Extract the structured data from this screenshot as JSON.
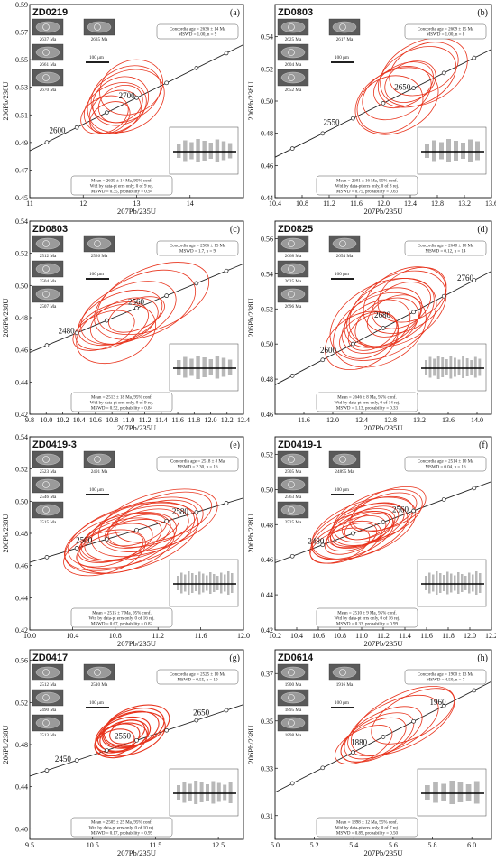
{
  "chart_data": [
    {
      "panel": "(a)",
      "sample": "ZD0219",
      "type": "scatter",
      "xlabel": "207Pb/235U",
      "ylabel": "206Pb/238U",
      "xlim": [
        11,
        15
      ],
      "ylim": [
        0.45,
        0.59
      ],
      "xticks": [
        "11",
        "12",
        "13",
        "14"
      ],
      "yticks": [
        "0.45",
        "0.47",
        "0.49",
        "0.51",
        "0.53",
        "0.55",
        "0.57",
        "0.59"
      ],
      "concordia_labels": [
        {
          "age": "2600",
          "x": 11.6,
          "y": 0.4955
        },
        {
          "age": "2700",
          "x": 12.9,
          "y": 0.5205
        }
      ],
      "concordia_age_text": [
        "Concordia age = 2636 ± 14 Ma",
        "MSWD = 1.00, n = 9"
      ],
      "mean_text": [
        "Mean = 2639 ± 14 Ma, 95% conf.",
        "Wtd by data-pt errs only, 0 of 9 rej.",
        "MSWD = 0.35, probability = 0.94"
      ],
      "grain_labels": [
        "2637 Ma",
        "2635 Ma",
        "2661 Ma",
        "2670 Ma"
      ],
      "scale_bar": "100 μm",
      "ellipses": [
        {
          "cx": 12.6,
          "cy": 0.515,
          "rx": 0.85,
          "ry": 0.04
        },
        {
          "cx": 12.4,
          "cy": 0.51,
          "rx": 0.65,
          "ry": 0.03
        },
        {
          "cx": 12.7,
          "cy": 0.52,
          "rx": 0.75,
          "ry": 0.04
        },
        {
          "cx": 12.8,
          "cy": 0.525,
          "rx": 0.95,
          "ry": 0.045
        },
        {
          "cx": 12.5,
          "cy": 0.508,
          "rx": 0.55,
          "ry": 0.025
        },
        {
          "cx": 12.9,
          "cy": 0.53,
          "rx": 0.85,
          "ry": 0.045
        },
        {
          "cx": 12.6,
          "cy": 0.512,
          "rx": 0.7,
          "ry": 0.035
        },
        {
          "cx": 12.7,
          "cy": 0.518,
          "rx": 0.6,
          "ry": 0.03
        },
        {
          "cx": 12.8,
          "cy": 0.52,
          "rx": 1.05,
          "ry": 0.05
        }
      ]
    },
    {
      "panel": "(b)",
      "sample": "ZD0803",
      "type": "scatter",
      "xlabel": "207Pb/235U",
      "ylabel": "206Pb/238U",
      "xlim": [
        10.4,
        13.6
      ],
      "ylim": [
        0.44,
        0.56
      ],
      "xticks": [
        "10.4",
        "10.8",
        "11.2",
        "11.6",
        "12.0",
        "12.4",
        "12.8",
        "13.2",
        "13.6"
      ],
      "yticks": [
        "0.44",
        "0.46",
        "0.48",
        "0.50",
        "0.52",
        "0.54"
      ],
      "concordia_labels": [
        {
          "age": "2550",
          "x": 11.3,
          "y": 0.484
        },
        {
          "age": "2650",
          "x": 12.35,
          "y": 0.506
        }
      ],
      "concordia_age_text": [
        "Concordia age = 2609 ± 15 Ma",
        "MSWD = 1.00, n = 8"
      ],
      "mean_text": [
        "Mean = 2601 ± 16 Ma, 95% conf.",
        "Wtd by data-pt errs only, 0 of 8 rej.",
        "MSWD = 0.75, probability = 0.63"
      ],
      "grain_labels": [
        "2625 Ma",
        "2617 Ma",
        "2604 Ma",
        "2652 Ma"
      ],
      "scale_bar": "100 μm",
      "ellipses": [
        {
          "cx": 12.2,
          "cy": 0.505,
          "rx": 0.75,
          "ry": 0.035
        },
        {
          "cx": 12.3,
          "cy": 0.51,
          "rx": 0.65,
          "ry": 0.03
        },
        {
          "cx": 12.5,
          "cy": 0.515,
          "rx": 0.85,
          "ry": 0.04
        },
        {
          "cx": 12.2,
          "cy": 0.5,
          "rx": 0.9,
          "ry": 0.045
        },
        {
          "cx": 12.4,
          "cy": 0.512,
          "rx": 0.55,
          "ry": 0.028
        },
        {
          "cx": 12.6,
          "cy": 0.52,
          "rx": 0.75,
          "ry": 0.035
        },
        {
          "cx": 12.1,
          "cy": 0.498,
          "rx": 0.7,
          "ry": 0.04
        },
        {
          "cx": 12.6,
          "cy": 0.518,
          "rx": 0.95,
          "ry": 0.045
        }
      ]
    },
    {
      "panel": "(c)",
      "sample": "ZD0803",
      "type": "scatter",
      "xlabel": "207Pb/235U",
      "ylabel": "206Pb/238U",
      "xlim": [
        9.8,
        12.4
      ],
      "ylim": [
        0.42,
        0.54
      ],
      "xticks": [
        "9.8",
        "10.0",
        "10.2",
        "10.4",
        "10.6",
        "10.8",
        "11.0",
        "11.2",
        "11.4",
        "11.6",
        "11.8",
        "12.0",
        "12.2",
        "12.4"
      ],
      "yticks": [
        "0.42",
        "0.44",
        "0.46",
        "0.48",
        "0.50",
        "0.52",
        "0.54"
      ],
      "concordia_labels": [
        {
          "age": "2480",
          "x": 10.3,
          "y": 0.469
        },
        {
          "age": "2560",
          "x": 11.15,
          "y": 0.487
        }
      ],
      "concordia_age_text": [
        "Concordia age = 2506 ± 15 Ma",
        "MSWD = 1.7, n = 9"
      ],
      "mean_text": [
        "Mean = 2513 ± 18 Ma, 95% conf.",
        "Wtd by data-pt errs only, 0 of 9 rej.",
        "MSWD = 0.52, probability = 0.84"
      ],
      "grain_labels": [
        "2512 Ma",
        "2526 Ma",
        "2504 Ma",
        "2507 Ma"
      ],
      "scale_bar": "100 μm",
      "ellipses": [
        {
          "cx": 10.9,
          "cy": 0.48,
          "rx": 0.75,
          "ry": 0.035
        },
        {
          "cx": 10.8,
          "cy": 0.475,
          "rx": 0.65,
          "ry": 0.03
        },
        {
          "cx": 11.0,
          "cy": 0.483,
          "rx": 0.85,
          "ry": 0.04
        },
        {
          "cx": 10.7,
          "cy": 0.472,
          "rx": 0.55,
          "ry": 0.025
        },
        {
          "cx": 11.2,
          "cy": 0.488,
          "rx": 0.9,
          "ry": 0.045
        },
        {
          "cx": 10.95,
          "cy": 0.478,
          "rx": 0.6,
          "ry": 0.03
        },
        {
          "cx": 11.3,
          "cy": 0.492,
          "rx": 1.0,
          "ry": 0.045
        },
        {
          "cx": 10.85,
          "cy": 0.47,
          "rx": 0.7,
          "ry": 0.04
        },
        {
          "cx": 11.1,
          "cy": 0.482,
          "rx": 0.5,
          "ry": 0.022
        }
      ]
    },
    {
      "panel": "(d)",
      "sample": "ZD0825",
      "type": "scatter",
      "xlabel": "207Pb/235U",
      "ylabel": "206Pb/238U",
      "xlim": [
        11.2,
        14.2
      ],
      "ylim": [
        0.46,
        0.57
      ],
      "xticks": [
        "11.6",
        "12.0",
        "12.4",
        "12.8",
        "13.2",
        "13.6",
        "14.0"
      ],
      "yticks": [
        "0.46",
        "0.48",
        "0.50",
        "0.52",
        "0.54",
        "0.56"
      ],
      "concordia_labels": [
        {
          "age": "2600",
          "x": 12.0,
          "y": 0.494
        },
        {
          "age": "2680",
          "x": 12.75,
          "y": 0.514
        },
        {
          "age": "2760",
          "x": 13.9,
          "y": 0.535
        }
      ],
      "concordia_age_text": [
        "Concordia age = 2648 ± 10 Ma",
        "MSWD = 0.12, n = 14"
      ],
      "mean_text": [
        "Mean = 2646 ± 8 Ma, 95% conf.",
        "Wtd by data-pt errs only, 0 of 14 rej.",
        "MSWD = 1.13, probability = 0.33"
      ],
      "grain_labels": [
        "2668 Ma",
        "2654 Ma",
        "2625 Ma",
        "2696 Ma"
      ],
      "scale_bar": "100 μm",
      "ellipses": [
        {
          "cx": 12.7,
          "cy": 0.515,
          "rx": 0.8,
          "ry": 0.035
        },
        {
          "cx": 12.6,
          "cy": 0.51,
          "rx": 0.7,
          "ry": 0.032
        },
        {
          "cx": 12.8,
          "cy": 0.518,
          "rx": 0.9,
          "ry": 0.04
        },
        {
          "cx": 12.5,
          "cy": 0.505,
          "rx": 0.6,
          "ry": 0.028
        },
        {
          "cx": 12.9,
          "cy": 0.52,
          "rx": 1.0,
          "ry": 0.045
        },
        {
          "cx": 12.75,
          "cy": 0.512,
          "rx": 0.65,
          "ry": 0.03
        },
        {
          "cx": 13.0,
          "cy": 0.525,
          "rx": 0.85,
          "ry": 0.04
        },
        {
          "cx": 12.4,
          "cy": 0.502,
          "rx": 0.75,
          "ry": 0.035
        },
        {
          "cx": 12.85,
          "cy": 0.516,
          "rx": 0.55,
          "ry": 0.025
        },
        {
          "cx": 12.65,
          "cy": 0.508,
          "rx": 0.95,
          "ry": 0.045
        },
        {
          "cx": 13.1,
          "cy": 0.528,
          "rx": 0.7,
          "ry": 0.033
        },
        {
          "cx": 12.7,
          "cy": 0.514,
          "rx": 1.1,
          "ry": 0.048
        },
        {
          "cx": 12.55,
          "cy": 0.507,
          "rx": 0.5,
          "ry": 0.022
        },
        {
          "cx": 12.95,
          "cy": 0.522,
          "rx": 0.6,
          "ry": 0.028
        }
      ]
    },
    {
      "panel": "(e)",
      "sample": "ZD0419-3",
      "type": "scatter",
      "xlabel": "207Pb/235U",
      "ylabel": "206Pb/238U",
      "xlim": [
        10.0,
        12.0
      ],
      "ylim": [
        0.42,
        0.54
      ],
      "xticks": [
        "10.0",
        "10.4",
        "10.8",
        "11.2",
        "11.6",
        "12.0"
      ],
      "yticks": [
        "0.42",
        "0.44",
        "0.46",
        "0.48",
        "0.50",
        "0.52",
        "0.54"
      ],
      "concordia_labels": [
        {
          "age": "2500",
          "x": 10.55,
          "y": 0.473
        },
        {
          "age": "2580",
          "x": 11.45,
          "y": 0.491
        }
      ],
      "concordia_age_text": [
        "Concordia age = 2518 ± 8 Ma",
        "MSWD = 2.30, n = 16"
      ],
      "mean_text": [
        "Mean = 2515 ± 7 Ma, 95% conf.",
        "Wtd by data-pt errs only, 0 of 16 rej.",
        "MSWD = 0.67, probability = 0.82"
      ],
      "grain_labels": [
        "2523 Ma",
        "2491 Ma",
        "2546 Ma",
        "2515 Ma"
      ],
      "scale_bar": "100 μm",
      "ellipses": [
        {
          "cx": 10.9,
          "cy": 0.478,
          "rx": 0.6,
          "ry": 0.03
        },
        {
          "cx": 10.8,
          "cy": 0.474,
          "rx": 0.5,
          "ry": 0.025
        },
        {
          "cx": 11.0,
          "cy": 0.48,
          "rx": 0.7,
          "ry": 0.035
        },
        {
          "cx": 10.75,
          "cy": 0.47,
          "rx": 0.45,
          "ry": 0.022
        },
        {
          "cx": 11.1,
          "cy": 0.484,
          "rx": 0.75,
          "ry": 0.038
        },
        {
          "cx": 10.85,
          "cy": 0.476,
          "rx": 0.55,
          "ry": 0.028
        },
        {
          "cx": 11.2,
          "cy": 0.488,
          "rx": 0.8,
          "ry": 0.04
        },
        {
          "cx": 10.9,
          "cy": 0.472,
          "rx": 0.65,
          "ry": 0.035
        },
        {
          "cx": 11.0,
          "cy": 0.482,
          "rx": 0.4,
          "ry": 0.02
        },
        {
          "cx": 10.95,
          "cy": 0.479,
          "rx": 0.85,
          "ry": 0.042
        },
        {
          "cx": 11.15,
          "cy": 0.486,
          "rx": 0.6,
          "ry": 0.03
        },
        {
          "cx": 10.7,
          "cy": 0.468,
          "rx": 0.55,
          "ry": 0.03
        },
        {
          "cx": 11.05,
          "cy": 0.483,
          "rx": 0.5,
          "ry": 0.025
        },
        {
          "cx": 10.85,
          "cy": 0.475,
          "rx": 0.75,
          "ry": 0.037
        },
        {
          "cx": 11.25,
          "cy": 0.49,
          "rx": 0.65,
          "ry": 0.032
        },
        {
          "cx": 10.95,
          "cy": 0.477,
          "rx": 0.9,
          "ry": 0.045
        }
      ]
    },
    {
      "panel": "(f)",
      "sample": "ZD0419-1",
      "type": "scatter",
      "xlabel": "207Pb/235U",
      "ylabel": "206Pb/238U",
      "xlim": [
        10.2,
        12.2
      ],
      "ylim": [
        0.42,
        0.53
      ],
      "xticks": [
        "10.2",
        "10.4",
        "10.6",
        "10.8",
        "11.0",
        "11.2",
        "11.4",
        "11.6",
        "11.8",
        "12.0",
        "12.2"
      ],
      "yticks": [
        "0.42",
        "0.44",
        "0.46",
        "0.48",
        "0.50",
        "0.52"
      ],
      "concordia_labels": [
        {
          "age": "2480",
          "x": 10.62,
          "y": 0.468
        },
        {
          "age": "2560",
          "x": 11.4,
          "y": 0.486
        }
      ],
      "concordia_age_text": [
        "Concordia age = 2514 ± 10 Ma",
        "MSWD = 0.04, n = 16"
      ],
      "mean_text": [
        "Mean = 2510 ± 9 Ma, 95% conf.",
        "Wtd by data-pt errs only, 0 of 16 rej.",
        "MSWD = 0.33, probability = 0.99"
      ],
      "grain_labels": [
        "2505 Ma",
        "24895 Ma",
        "2563 Ma",
        "2525 Ma"
      ],
      "scale_bar": "100 μm",
      "ellipses": [
        {
          "cx": 11.0,
          "cy": 0.478,
          "rx": 0.45,
          "ry": 0.022
        },
        {
          "cx": 10.95,
          "cy": 0.475,
          "rx": 0.4,
          "ry": 0.02
        },
        {
          "cx": 11.05,
          "cy": 0.48,
          "rx": 0.5,
          "ry": 0.025
        },
        {
          "cx": 10.9,
          "cy": 0.472,
          "rx": 0.35,
          "ry": 0.018
        },
        {
          "cx": 11.1,
          "cy": 0.482,
          "rx": 0.55,
          "ry": 0.028
        },
        {
          "cx": 11.0,
          "cy": 0.477,
          "rx": 0.42,
          "ry": 0.021
        },
        {
          "cx": 11.15,
          "cy": 0.485,
          "rx": 0.6,
          "ry": 0.03
        },
        {
          "cx": 10.85,
          "cy": 0.47,
          "rx": 0.48,
          "ry": 0.024
        },
        {
          "cx": 11.05,
          "cy": 0.479,
          "rx": 0.3,
          "ry": 0.015
        },
        {
          "cx": 10.98,
          "cy": 0.476,
          "rx": 0.65,
          "ry": 0.032
        },
        {
          "cx": 11.2,
          "cy": 0.487,
          "rx": 0.45,
          "ry": 0.022
        },
        {
          "cx": 10.8,
          "cy": 0.468,
          "rx": 0.4,
          "ry": 0.02
        },
        {
          "cx": 11.08,
          "cy": 0.481,
          "rx": 0.38,
          "ry": 0.019
        },
        {
          "cx": 10.92,
          "cy": 0.474,
          "rx": 0.55,
          "ry": 0.027
        },
        {
          "cx": 11.25,
          "cy": 0.489,
          "rx": 0.5,
          "ry": 0.025
        },
        {
          "cx": 11.02,
          "cy": 0.478,
          "rx": 0.7,
          "ry": 0.035
        }
      ]
    },
    {
      "panel": "(g)",
      "sample": "ZD0417",
      "type": "scatter",
      "xlabel": "207Pb/235U",
      "ylabel": "206Pb/238U",
      "xlim": [
        9.5,
        12.9
      ],
      "ylim": [
        0.39,
        0.57
      ],
      "xticks": [
        "9.5",
        "10.5",
        "11.5",
        "12.5"
      ],
      "yticks": [
        "0.40",
        "0.44",
        "0.48",
        "0.52",
        "0.56"
      ],
      "concordia_labels": [
        {
          "age": "2450",
          "x": 10.1,
          "y": 0.462
        },
        {
          "age": "2550",
          "x": 11.05,
          "y": 0.484
        },
        {
          "age": "2650",
          "x": 12.3,
          "y": 0.506
        }
      ],
      "concordia_age_text": [
        "Concordia age = 2525 ± 10 Ma",
        "MSWD = 0.55, n = 10"
      ],
      "mean_text": [
        "Mean = 2505 ± 25 Ma, 95% conf.",
        "Wtd by data-pt errs only, 0 of 10 rej.",
        "MSWD = 0.17, probability = 0.99"
      ],
      "grain_labels": [
        "2512 Ma",
        "2510 Ma",
        "2490 Ma",
        "2513 Ma"
      ],
      "scale_bar": "100 μm",
      "ellipses": [
        {
          "cx": 11.0,
          "cy": 0.49,
          "rx": 0.6,
          "ry": 0.035
        },
        {
          "cx": 10.9,
          "cy": 0.486,
          "rx": 0.5,
          "ry": 0.03
        },
        {
          "cx": 11.1,
          "cy": 0.494,
          "rx": 0.65,
          "ry": 0.038
        },
        {
          "cx": 10.85,
          "cy": 0.482,
          "rx": 0.45,
          "ry": 0.028
        },
        {
          "cx": 11.15,
          "cy": 0.496,
          "rx": 0.7,
          "ry": 0.04
        },
        {
          "cx": 11.0,
          "cy": 0.488,
          "rx": 0.55,
          "ry": 0.033
        },
        {
          "cx": 11.2,
          "cy": 0.498,
          "rx": 0.75,
          "ry": 0.042
        },
        {
          "cx": 10.95,
          "cy": 0.484,
          "rx": 0.6,
          "ry": 0.036
        },
        {
          "cx": 11.05,
          "cy": 0.492,
          "rx": 0.4,
          "ry": 0.025
        },
        {
          "cx": 11.1,
          "cy": 0.49,
          "rx": 0.8,
          "ry": 0.045
        }
      ]
    },
    {
      "panel": "(h)",
      "sample": "ZD0614",
      "type": "scatter",
      "xlabel": "207Pb/235U",
      "ylabel": "206Pb/238U",
      "xlim": [
        5.0,
        6.1
      ],
      "ylim": [
        0.3,
        0.38
      ],
      "xticks": [
        "5.0",
        "5.2",
        "5.4",
        "5.6",
        "5.8",
        "6.0"
      ],
      "yticks": [
        "0.31",
        "0.33",
        "0.35",
        "0.37"
      ],
      "concordia_labels": [
        {
          "age": "1880",
          "x": 5.45,
          "y": 0.339
        },
        {
          "age": "1960",
          "x": 5.85,
          "y": 0.356
        }
      ],
      "concordia_age_text": [
        "Concordia age = 1900 ± 13 Ma",
        "MSWD = 4.50, n = 7"
      ],
      "mean_text": [
        "Mean = 1898 ± 12 Ma, 95% conf.",
        "Wtd by data-pt errs only, 0 of 7 rej.",
        "MSWD = 0.89, probability = 0.50"
      ],
      "grain_labels": [
        "1900 Ma",
        "1916 Ma",
        "1895 Ma",
        "1898 Ma"
      ],
      "scale_bar": "100 μm",
      "ellipses": [
        {
          "cx": 5.55,
          "cy": 0.345,
          "rx": 0.3,
          "ry": 0.02
        },
        {
          "cx": 5.5,
          "cy": 0.342,
          "rx": 0.25,
          "ry": 0.017
        },
        {
          "cx": 5.6,
          "cy": 0.348,
          "rx": 0.35,
          "ry": 0.023
        },
        {
          "cx": 5.45,
          "cy": 0.34,
          "rx": 0.22,
          "ry": 0.015
        },
        {
          "cx": 5.65,
          "cy": 0.35,
          "rx": 0.4,
          "ry": 0.026
        },
        {
          "cx": 5.52,
          "cy": 0.343,
          "rx": 0.28,
          "ry": 0.019
        },
        {
          "cx": 5.7,
          "cy": 0.352,
          "rx": 0.32,
          "ry": 0.021
        }
      ]
    }
  ]
}
